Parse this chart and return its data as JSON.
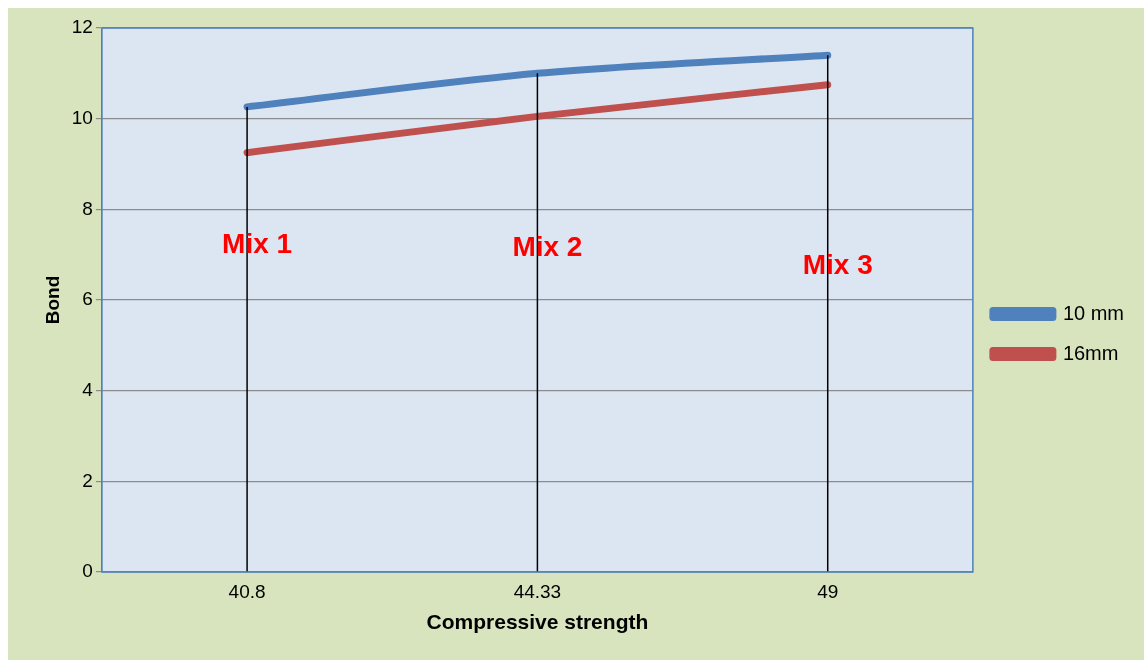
{
  "chart_data": {
    "type": "line",
    "xlabel": "Compressive strength",
    "ylabel": "Bond",
    "categories": [
      "40.8",
      "44.33",
      "49"
    ],
    "series": [
      {
        "name": "10 mm",
        "color": "#4f81bd",
        "values": [
          10.26,
          11.0,
          11.4
        ]
      },
      {
        "name": "16mm",
        "color": "#c0504d",
        "values": [
          9.25,
          10.05,
          10.75
        ]
      }
    ],
    "ylim": [
      0,
      12
    ],
    "yticks": [
      0,
      2,
      4,
      6,
      8,
      10,
      12
    ],
    "grid": "y",
    "legend": "right",
    "marker": "none",
    "ref_lines": [
      {
        "axis": "x",
        "value": "40.8",
        "color": "#000000"
      },
      {
        "axis": "x",
        "value": "44.33",
        "color": "#000000"
      },
      {
        "axis": "x",
        "value": "49",
        "color": "#000000"
      }
    ],
    "annotations": [
      {
        "text": "Mix 1",
        "x": "40.8",
        "y": 7.2
      },
      {
        "text": "Mix 2",
        "x": "44.33",
        "y": 7.15
      },
      {
        "text": "Mix 3",
        "x": "49",
        "y": 6.75
      }
    ]
  }
}
